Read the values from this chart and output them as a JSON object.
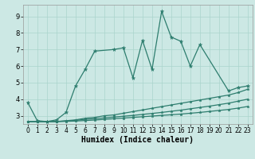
{
  "xlabel": "Humidex (Indice chaleur)",
  "bg_color": "#cce8e4",
  "line_color": "#2d7d6e",
  "grid_color": "#aad4cc",
  "xlim": [
    -0.5,
    23.5
  ],
  "ylim": [
    2.5,
    9.7
  ],
  "xticks": [
    0,
    1,
    2,
    3,
    4,
    5,
    6,
    7,
    8,
    9,
    10,
    11,
    12,
    13,
    14,
    15,
    16,
    17,
    18,
    19,
    20,
    21,
    22,
    23
  ],
  "yticks": [
    3,
    4,
    5,
    6,
    7,
    8,
    9
  ],
  "series": [
    {
      "x": [
        0,
        1,
        2,
        3,
        4,
        5,
        6,
        7,
        9,
        10,
        11,
        12,
        13,
        14,
        15,
        16,
        17,
        18,
        21,
        22,
        23
      ],
      "y": [
        3.8,
        2.7,
        2.65,
        2.75,
        3.2,
        4.8,
        5.8,
        6.9,
        7.0,
        7.1,
        5.3,
        7.55,
        5.8,
        9.3,
        7.75,
        7.5,
        6.0,
        7.3,
        4.5,
        4.7,
        4.8
      ],
      "marker": true,
      "marker_size": 3.5
    },
    {
      "x": [
        0,
        1,
        2,
        3,
        4,
        5,
        6,
        7,
        8,
        9,
        10,
        11,
        12,
        13,
        14,
        15,
        16,
        17,
        18,
        19,
        20,
        21,
        22,
        23
      ],
      "y": [
        2.65,
        2.65,
        2.65,
        2.65,
        2.7,
        2.75,
        2.85,
        2.9,
        3.0,
        3.05,
        3.15,
        3.25,
        3.35,
        3.45,
        3.55,
        3.65,
        3.75,
        3.85,
        3.95,
        4.05,
        4.15,
        4.25,
        4.4,
        4.6
      ],
      "marker": true,
      "marker_size": 2.5
    },
    {
      "x": [
        0,
        1,
        2,
        3,
        4,
        5,
        6,
        7,
        8,
        9,
        10,
        11,
        12,
        13,
        14,
        15,
        16,
        17,
        18,
        19,
        20,
        21,
        22,
        23
      ],
      "y": [
        2.65,
        2.65,
        2.65,
        2.65,
        2.68,
        2.72,
        2.78,
        2.82,
        2.87,
        2.92,
        2.97,
        3.02,
        3.08,
        3.14,
        3.2,
        3.27,
        3.34,
        3.42,
        3.5,
        3.58,
        3.67,
        3.76,
        3.88,
        4.0
      ],
      "marker": true,
      "marker_size": 2.5
    },
    {
      "x": [
        0,
        1,
        2,
        3,
        4,
        5,
        6,
        7,
        8,
        9,
        10,
        11,
        12,
        13,
        14,
        15,
        16,
        17,
        18,
        19,
        20,
        21,
        22,
        23
      ],
      "y": [
        2.65,
        2.65,
        2.65,
        2.65,
        2.66,
        2.68,
        2.71,
        2.74,
        2.78,
        2.82,
        2.86,
        2.9,
        2.94,
        2.98,
        3.02,
        3.06,
        3.1,
        3.15,
        3.2,
        3.26,
        3.32,
        3.38,
        3.46,
        3.56
      ],
      "marker": true,
      "marker_size": 2.5
    }
  ],
  "line_width": 0.9,
  "xlabel_fontsize": 7,
  "tick_fontsize": 5.5
}
